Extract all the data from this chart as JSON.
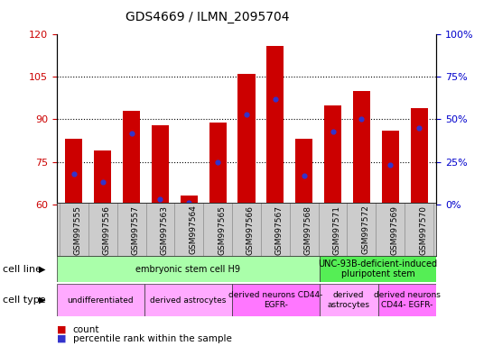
{
  "title": "GDS4669 / ILMN_2095704",
  "samples": [
    "GSM997555",
    "GSM997556",
    "GSM997557",
    "GSM997563",
    "GSM997564",
    "GSM997565",
    "GSM997566",
    "GSM997567",
    "GSM997568",
    "GSM997571",
    "GSM997572",
    "GSM997569",
    "GSM997570"
  ],
  "count_values": [
    83,
    79,
    93,
    88,
    63,
    89,
    106,
    116,
    83,
    95,
    100,
    86,
    94
  ],
  "percentile_values": [
    18,
    13,
    42,
    3,
    1,
    25,
    53,
    62,
    17,
    43,
    50,
    23,
    45
  ],
  "ylim_left": [
    60,
    120
  ],
  "ylim_right": [
    0,
    100
  ],
  "yticks_left": [
    60,
    75,
    90,
    105,
    120
  ],
  "yticks_right": [
    0,
    25,
    50,
    75,
    100
  ],
  "bar_color": "#cc0000",
  "dot_color": "#3333cc",
  "bar_width": 0.6,
  "cell_line_groups": [
    {
      "label": "embryonic stem cell H9",
      "start": 0,
      "end": 8,
      "color": "#aaffaa"
    },
    {
      "label": "UNC-93B-deficient-induced\npluripotent stem",
      "start": 9,
      "end": 12,
      "color": "#55ee55"
    }
  ],
  "cell_type_groups": [
    {
      "label": "undifferentiated",
      "start": 0,
      "end": 2,
      "color": "#ffaaff"
    },
    {
      "label": "derived astrocytes",
      "start": 3,
      "end": 5,
      "color": "#ffaaff"
    },
    {
      "label": "derived neurons CD44-\nEGFR-",
      "start": 6,
      "end": 8,
      "color": "#ff77ff"
    },
    {
      "label": "derived\nastrocytes",
      "start": 9,
      "end": 10,
      "color": "#ffaaff"
    },
    {
      "label": "derived neurons\nCD44- EGFR-",
      "start": 11,
      "end": 12,
      "color": "#ff77ff"
    }
  ],
  "cell_line_label": "cell line",
  "cell_type_label": "cell type",
  "legend_count_label": "count",
  "legend_percentile_label": "percentile rank within the sample",
  "left_axis_color": "#cc0000",
  "right_axis_color": "#0000cc",
  "background_color": "#ffffff",
  "grid_color": "#000000",
  "xticklabel_bg": "#cccccc"
}
